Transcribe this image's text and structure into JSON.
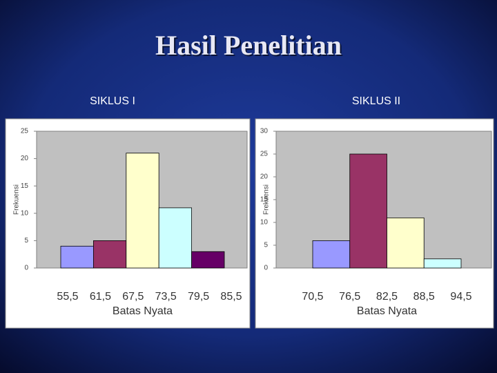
{
  "title": "Hasil Penelitian",
  "chart_data": [
    {
      "type": "histogram",
      "title": "SIKLUS I",
      "ylabel": "Frekuensi",
      "xlabel": "Batas Nyata",
      "bins": [
        {
          "value": 55.5,
          "label": "55,5"
        },
        {
          "value": 61.5,
          "label": "61,5"
        },
        {
          "value": 67.5,
          "label": "67,5"
        },
        {
          "value": 73.5,
          "label": "73,5"
        },
        {
          "value": 79.5,
          "label": "79,5"
        },
        {
          "value": 85.5,
          "label": "85,5"
        }
      ],
      "values": [
        4,
        5,
        21,
        11,
        3
      ],
      "colors": [
        "#9999ff",
        "#993366",
        "#ffffcc",
        "#ccffff",
        "#660066"
      ],
      "ylim": [
        0,
        25
      ],
      "yticks": [
        0,
        5,
        10,
        15,
        20,
        25
      ]
    },
    {
      "type": "histogram",
      "title": "SIKLUS II",
      "ylabel": "Frekuensi",
      "xlabel": "Batas Nyata",
      "bins": [
        {
          "value": 70.5,
          "label": "70,5"
        },
        {
          "value": 76.5,
          "label": "76,5"
        },
        {
          "value": 82.5,
          "label": "82,5"
        },
        {
          "value": 88.5,
          "label": "88,5"
        },
        {
          "value": 94.5,
          "label": "94,5"
        }
      ],
      "values": [
        6,
        25,
        11,
        2
      ],
      "colors": [
        "#9999ff",
        "#993366",
        "#ffffcc",
        "#ccffff"
      ],
      "ylim": [
        0,
        30
      ],
      "yticks": [
        0,
        5,
        10,
        15,
        20,
        25,
        30
      ]
    }
  ]
}
